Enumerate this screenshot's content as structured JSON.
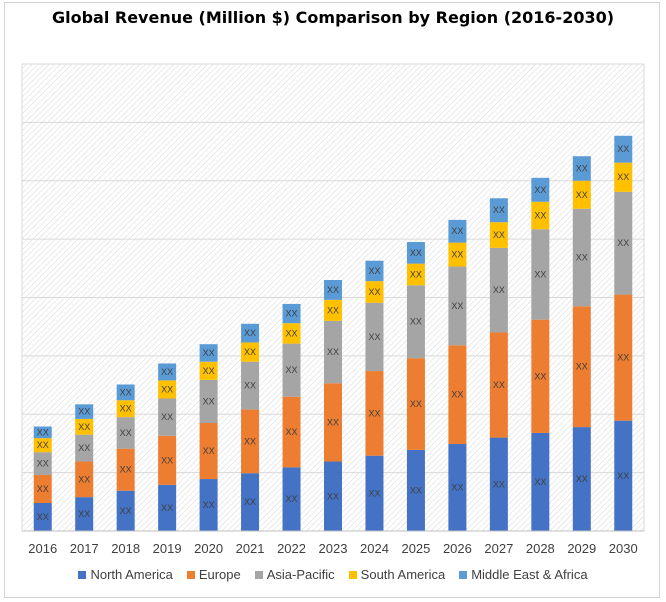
{
  "chart_data": {
    "type": "bar",
    "stacked": true,
    "title": "Global Revenue (Million $) Comparison by Region (2016-2030)",
    "xlabel": "",
    "ylabel": "",
    "categories": [
      "2016",
      "2017",
      "2018",
      "2019",
      "2020",
      "2021",
      "2022",
      "2023",
      "2024",
      "2025",
      "2026",
      "2027",
      "2028",
      "2029",
      "2030"
    ],
    "ylim": [
      0,
      8
    ],
    "grid": true,
    "legend_position": "bottom",
    "segment_label": "XX",
    "series": [
      {
        "name": "North America",
        "color": "#4472C4",
        "values": [
          0.48,
          0.58,
          0.69,
          0.79,
          0.89,
          0.99,
          1.09,
          1.19,
          1.29,
          1.39,
          1.49,
          1.6,
          1.68,
          1.78,
          1.89
        ]
      },
      {
        "name": "Europe",
        "color": "#ED7D31",
        "values": [
          0.48,
          0.61,
          0.72,
          0.84,
          0.96,
          1.09,
          1.21,
          1.34,
          1.45,
          1.57,
          1.69,
          1.8,
          1.94,
          2.07,
          2.16
        ]
      },
      {
        "name": "Asia-Pacific",
        "color": "#A5A5A5",
        "values": [
          0.39,
          0.46,
          0.54,
          0.64,
          0.74,
          0.82,
          0.91,
          1.07,
          1.17,
          1.25,
          1.35,
          1.45,
          1.55,
          1.67,
          1.76
        ]
      },
      {
        "name": "South America",
        "color": "#FFC000",
        "values": [
          0.24,
          0.27,
          0.29,
          0.31,
          0.31,
          0.33,
          0.35,
          0.36,
          0.37,
          0.37,
          0.41,
          0.44,
          0.47,
          0.48,
          0.5
        ]
      },
      {
        "name": "Middle East & Africa",
        "color": "#5B9BD5",
        "values": [
          0.2,
          0.25,
          0.27,
          0.29,
          0.3,
          0.32,
          0.33,
          0.34,
          0.35,
          0.37,
          0.39,
          0.41,
          0.41,
          0.42,
          0.46
        ]
      }
    ]
  }
}
